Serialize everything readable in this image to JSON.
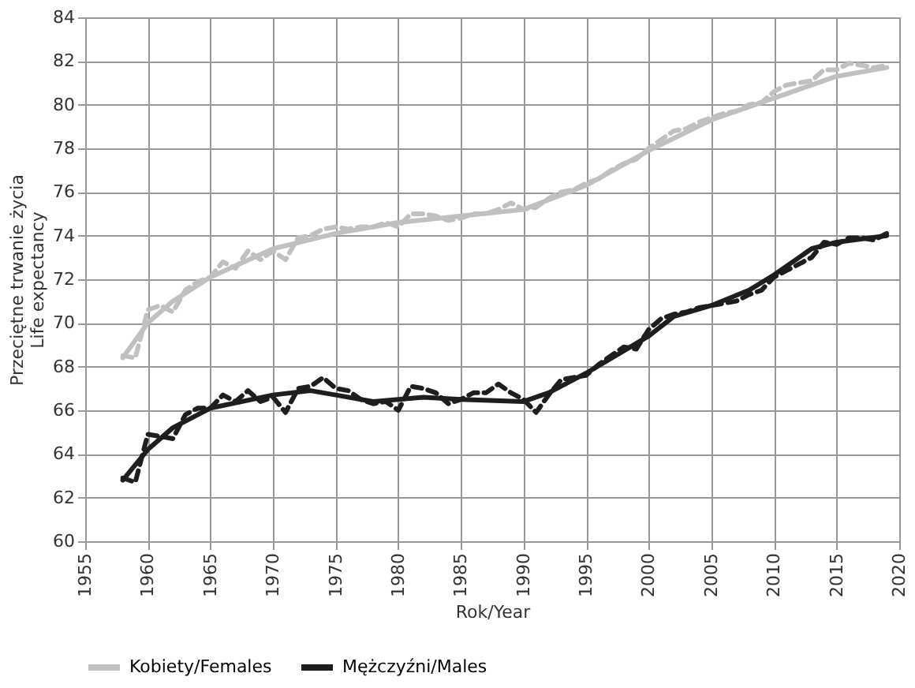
{
  "chart_data": {
    "type": "line",
    "xlabel": "Rok/Year",
    "ylabel": [
      "Przeciętne trwanie życia",
      "Life expectancy"
    ],
    "xlim": [
      1955,
      2020
    ],
    "xticks": [
      1955,
      1960,
      1965,
      1970,
      1975,
      1980,
      1985,
      1990,
      1995,
      2000,
      2005,
      2010,
      2015,
      2020
    ],
    "ylim": [
      60,
      84
    ],
    "yticks": [
      60,
      62,
      64,
      66,
      68,
      70,
      72,
      74,
      76,
      78,
      80,
      82,
      84
    ],
    "grid": true,
    "legend": "bottom",
    "marker": "none",
    "series": [
      {
        "color": "#c0c0c0",
        "line_style": "dashed",
        "x": [
          1958,
          1959,
          1960,
          1961,
          1962,
          1963,
          1964,
          1965,
          1966,
          1967,
          1968,
          1969,
          1970,
          1971,
          1972,
          1973,
          1974,
          1975,
          1976,
          1977,
          1978,
          1979,
          1980,
          1981,
          1982,
          1983,
          1984,
          1985,
          1986,
          1987,
          1988,
          1989,
          1990,
          1991,
          1992,
          1993,
          1994,
          1995,
          1996,
          1997,
          1998,
          1999,
          2000,
          2001,
          2002,
          2003,
          2004,
          2005,
          2006,
          2007,
          2008,
          2009,
          2010,
          2011,
          2012,
          2013,
          2014,
          2015,
          2016,
          2017,
          2018,
          2019
        ],
        "values": [
          68.5,
          68.4,
          70.6,
          70.8,
          70.5,
          71.5,
          71.9,
          72.1,
          72.8,
          72.5,
          73.3,
          72.9,
          73.3,
          72.9,
          73.9,
          74.0,
          74.3,
          74.4,
          74.3,
          74.4,
          74.4,
          74.6,
          74.4,
          75.0,
          75.0,
          74.9,
          74.7,
          74.8,
          75.0,
          75.0,
          75.2,
          75.5,
          75.2,
          75.3,
          75.7,
          76.0,
          76.1,
          76.4,
          76.6,
          77.0,
          77.3,
          77.5,
          78.0,
          78.4,
          78.8,
          78.9,
          79.2,
          79.4,
          79.6,
          79.7,
          80.0,
          80.1,
          80.6,
          80.9,
          81.0,
          81.1,
          81.6,
          81.6,
          81.9,
          81.8,
          81.7,
          81.8
        ]
      },
      {
        "color": "#1e1e1e",
        "line_style": "dashed",
        "x": [
          1958,
          1959,
          1960,
          1961,
          1962,
          1963,
          1964,
          1965,
          1966,
          1967,
          1968,
          1969,
          1970,
          1971,
          1972,
          1973,
          1974,
          1975,
          1976,
          1977,
          1978,
          1979,
          1980,
          1981,
          1982,
          1983,
          1984,
          1985,
          1986,
          1987,
          1988,
          1989,
          1990,
          1991,
          1992,
          1993,
          1994,
          1995,
          1996,
          1997,
          1998,
          1999,
          2000,
          2001,
          2002,
          2003,
          2004,
          2005,
          2006,
          2007,
          2008,
          2009,
          2010,
          2011,
          2012,
          2013,
          2014,
          2015,
          2016,
          2017,
          2018,
          2019
        ],
        "values": [
          62.9,
          62.7,
          64.9,
          64.8,
          64.7,
          65.8,
          66.1,
          66.1,
          66.7,
          66.4,
          66.9,
          66.4,
          66.6,
          65.9,
          67.0,
          67.1,
          67.5,
          67.0,
          66.9,
          66.5,
          66.3,
          66.4,
          66.0,
          67.1,
          67.0,
          66.8,
          66.3,
          66.5,
          66.8,
          66.8,
          67.2,
          66.8,
          66.5,
          65.9,
          66.7,
          67.4,
          67.5,
          67.6,
          68.1,
          68.5,
          68.9,
          68.8,
          69.7,
          70.2,
          70.4,
          70.5,
          70.7,
          70.8,
          70.9,
          71.0,
          71.3,
          71.5,
          72.1,
          72.4,
          72.7,
          73.0,
          73.7,
          73.6,
          73.9,
          73.9,
          73.8,
          74.1
        ]
      },
      {
        "name": "Kobiety/Females",
        "color": "#c0c0c0",
        "line_style": "solid",
        "x": [
          1958,
          1960,
          1962,
          1965,
          1970,
          1975,
          1980,
          1985,
          1990,
          1995,
          2000,
          2005,
          2010,
          2015,
          2019
        ],
        "values": [
          68.4,
          70.0,
          71.0,
          72.1,
          73.4,
          74.1,
          74.6,
          74.9,
          75.2,
          76.3,
          77.9,
          79.3,
          80.3,
          81.3,
          81.7
        ]
      },
      {
        "name": "Mężczyźni/Males",
        "color": "#1e1e1e",
        "line_style": "solid",
        "x": [
          1958,
          1960,
          1962,
          1965,
          1970,
          1973,
          1975,
          1978,
          1980,
          1982,
          1985,
          1990,
          1992,
          1995,
          2000,
          2002,
          2005,
          2008,
          2010,
          2013,
          2015,
          2019
        ],
        "values": [
          62.8,
          64.2,
          65.2,
          66.1,
          66.7,
          66.9,
          66.7,
          66.4,
          66.5,
          66.6,
          66.5,
          66.4,
          66.8,
          67.7,
          69.4,
          70.3,
          70.8,
          71.5,
          72.2,
          73.4,
          73.7,
          74.0
        ]
      }
    ]
  }
}
